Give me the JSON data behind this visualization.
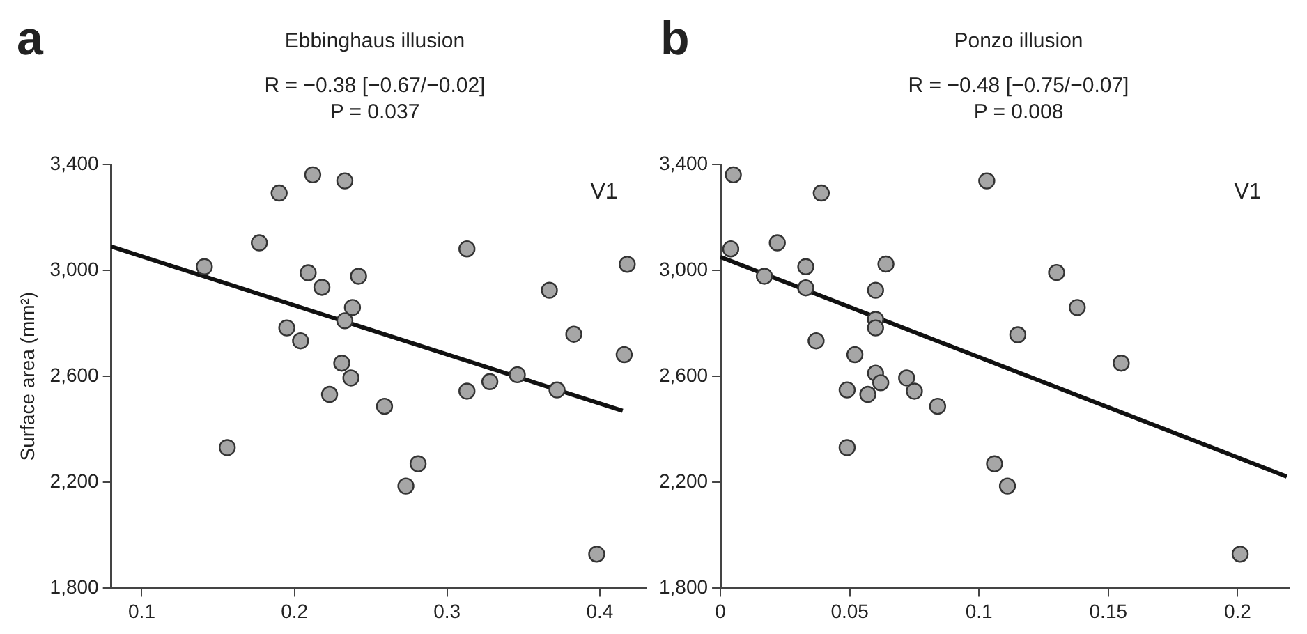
{
  "chart_data": [
    {
      "type": "scatter",
      "title": "Ebbinghaus illusion",
      "subtitle": "R = −0.38 [−0.67/−0.02]\nP = 0.037",
      "ylabel": "Surface area (mm²)",
      "annotations": [
        "a",
        "V1"
      ],
      "xlim": [
        0.08,
        0.43
      ],
      "xticks": [
        0.1,
        0.2,
        0.3,
        0.4
      ],
      "ylim": [
        1800,
        3400
      ],
      "yticks": [
        {
          "value": 1800,
          "label": "1,800"
        },
        {
          "value": 2200,
          "label": "2,200"
        },
        {
          "value": 2600,
          "label": "2,600"
        },
        {
          "value": 3000,
          "label": "3,000"
        },
        {
          "value": 3400,
          "label": "3,400"
        }
      ],
      "grid": false,
      "legend": false,
      "series": [
        {
          "marker": "circle",
          "color": "#a6a6a6",
          "x": [
            0.141,
            0.156,
            0.177,
            0.19,
            0.195,
            0.204,
            0.209,
            0.212,
            0.218,
            0.223,
            0.231,
            0.233,
            0.233,
            0.237,
            0.238,
            0.242,
            0.259,
            0.273,
            0.281,
            0.313,
            0.313,
            0.328,
            0.346,
            0.367,
            0.372,
            0.383,
            0.398,
            0.416,
            0.418
          ],
          "values": [
            3014,
            2331,
            3104,
            3292,
            2783,
            2734,
            2991,
            3361,
            2936,
            2532,
            2650,
            3338,
            2810,
            2594,
            2860,
            2978,
            2487,
            2186,
            2270,
            2544,
            3081,
            2580,
            2606,
            2925,
            2549,
            2759,
            1929,
            2682,
            3023
          ]
        },
        {
          "type": "line",
          "marker": "none",
          "color": "#111111",
          "x": [
            0.08,
            0.415
          ],
          "values": [
            3090,
            2470
          ]
        }
      ]
    },
    {
      "type": "scatter",
      "title": "Ponzo illusion",
      "subtitle": "R = −0.48 [−0.75/−0.07]\nP = 0.008",
      "annotations": [
        "b",
        "V1"
      ],
      "xlim": [
        0,
        0.22
      ],
      "xticks": [
        0,
        0.05,
        0.1,
        0.15,
        0.2
      ],
      "ylim": [
        1800,
        3400
      ],
      "yticks": [
        {
          "value": 1800,
          "label": "1,800"
        },
        {
          "value": 2200,
          "label": "2,200"
        },
        {
          "value": 2600,
          "label": "2,600"
        },
        {
          "value": 3000,
          "label": "3,000"
        },
        {
          "value": 3400,
          "label": "3,400"
        }
      ],
      "grid": false,
      "legend": false,
      "series": [
        {
          "marker": "circle",
          "color": "#a6a6a6",
          "x": [
            0.005,
            0.004,
            0.017,
            0.022,
            0.033,
            0.033,
            0.039,
            0.037,
            0.049,
            0.049,
            0.052,
            0.057,
            0.06,
            0.062,
            0.06,
            0.06,
            0.06,
            0.064,
            0.072,
            0.075,
            0.084,
            0.103,
            0.106,
            0.111,
            0.115,
            0.13,
            0.138,
            0.155,
            0.201
          ],
          "values": [
            3361,
            3081,
            2978,
            3104,
            3014,
            2934,
            3292,
            2734,
            2331,
            2549,
            2682,
            2532,
            2612,
            2576,
            2925,
            2815,
            2783,
            3024,
            2594,
            2544,
            2487,
            3338,
            2270,
            2186,
            2757,
            2992,
            2860,
            2650,
            1929
          ]
        },
        {
          "type": "line",
          "marker": "none",
          "color": "#111111",
          "x": [
            0,
            0.219
          ],
          "values": [
            3051,
            2222
          ]
        }
      ]
    }
  ]
}
